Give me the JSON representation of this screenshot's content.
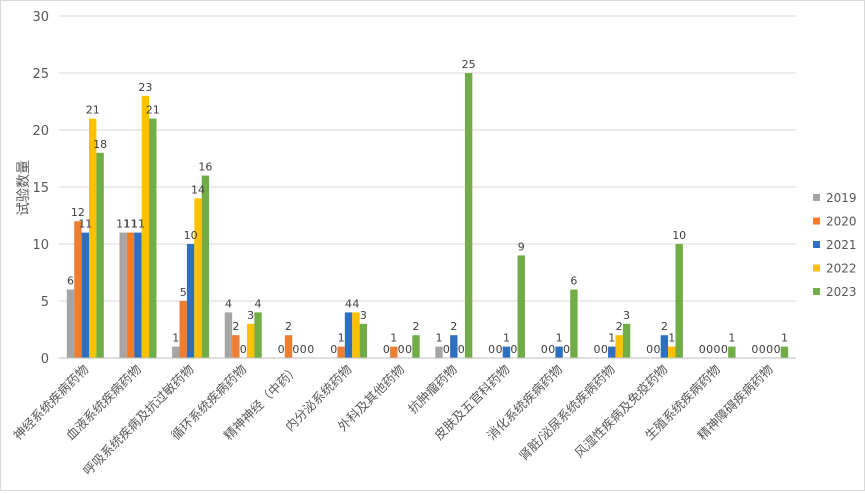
{
  "chart_data": {
    "type": "bar",
    "ylabel": "试验数量",
    "ylim": [
      0,
      30
    ],
    "yticks": [
      0,
      5,
      10,
      15,
      20,
      25,
      30
    ],
    "grid": true,
    "legend_position": "right",
    "categories": [
      "神经系统疾病药物",
      "血液系统疾病药物",
      "呼吸系统疾病及抗过敏药物",
      "循环系统疾病药物",
      "精神神经（中药）",
      "内分泌系统药物",
      "外科及其他药物",
      "抗肿瘤药物",
      "皮肤及五官科药物",
      "消化系统疾病药物",
      "肾脏/泌尿系统疾病药物",
      "风湿性疾病及免疫药物",
      "生殖系统疾病药物",
      "精神障碍疾病药物"
    ],
    "series": [
      {
        "name": "2019",
        "color": "#a5a5a5",
        "values": [
          6,
          11,
          1,
          4,
          0,
          0,
          0,
          1,
          0,
          0,
          0,
          0,
          0,
          0
        ]
      },
      {
        "name": "2020",
        "color": "#ed7d31",
        "values": [
          12,
          11,
          5,
          2,
          2,
          1,
          1,
          0,
          0,
          0,
          0,
          0,
          0,
          0
        ]
      },
      {
        "name": "2021",
        "color": "#2e6fbf",
        "values": [
          11,
          11,
          10,
          0,
          0,
          4,
          0,
          2,
          1,
          1,
          1,
          2,
          0,
          0
        ]
      },
      {
        "name": "2022",
        "color": "#ffc000",
        "values": [
          21,
          23,
          14,
          3,
          0,
          4,
          0,
          0,
          0,
          0,
          2,
          1,
          0,
          0
        ]
      },
      {
        "name": "2023",
        "color": "#70ad47",
        "values": [
          18,
          21,
          16,
          4,
          0,
          3,
          2,
          25,
          9,
          6,
          3,
          10,
          1,
          1
        ]
      }
    ]
  }
}
